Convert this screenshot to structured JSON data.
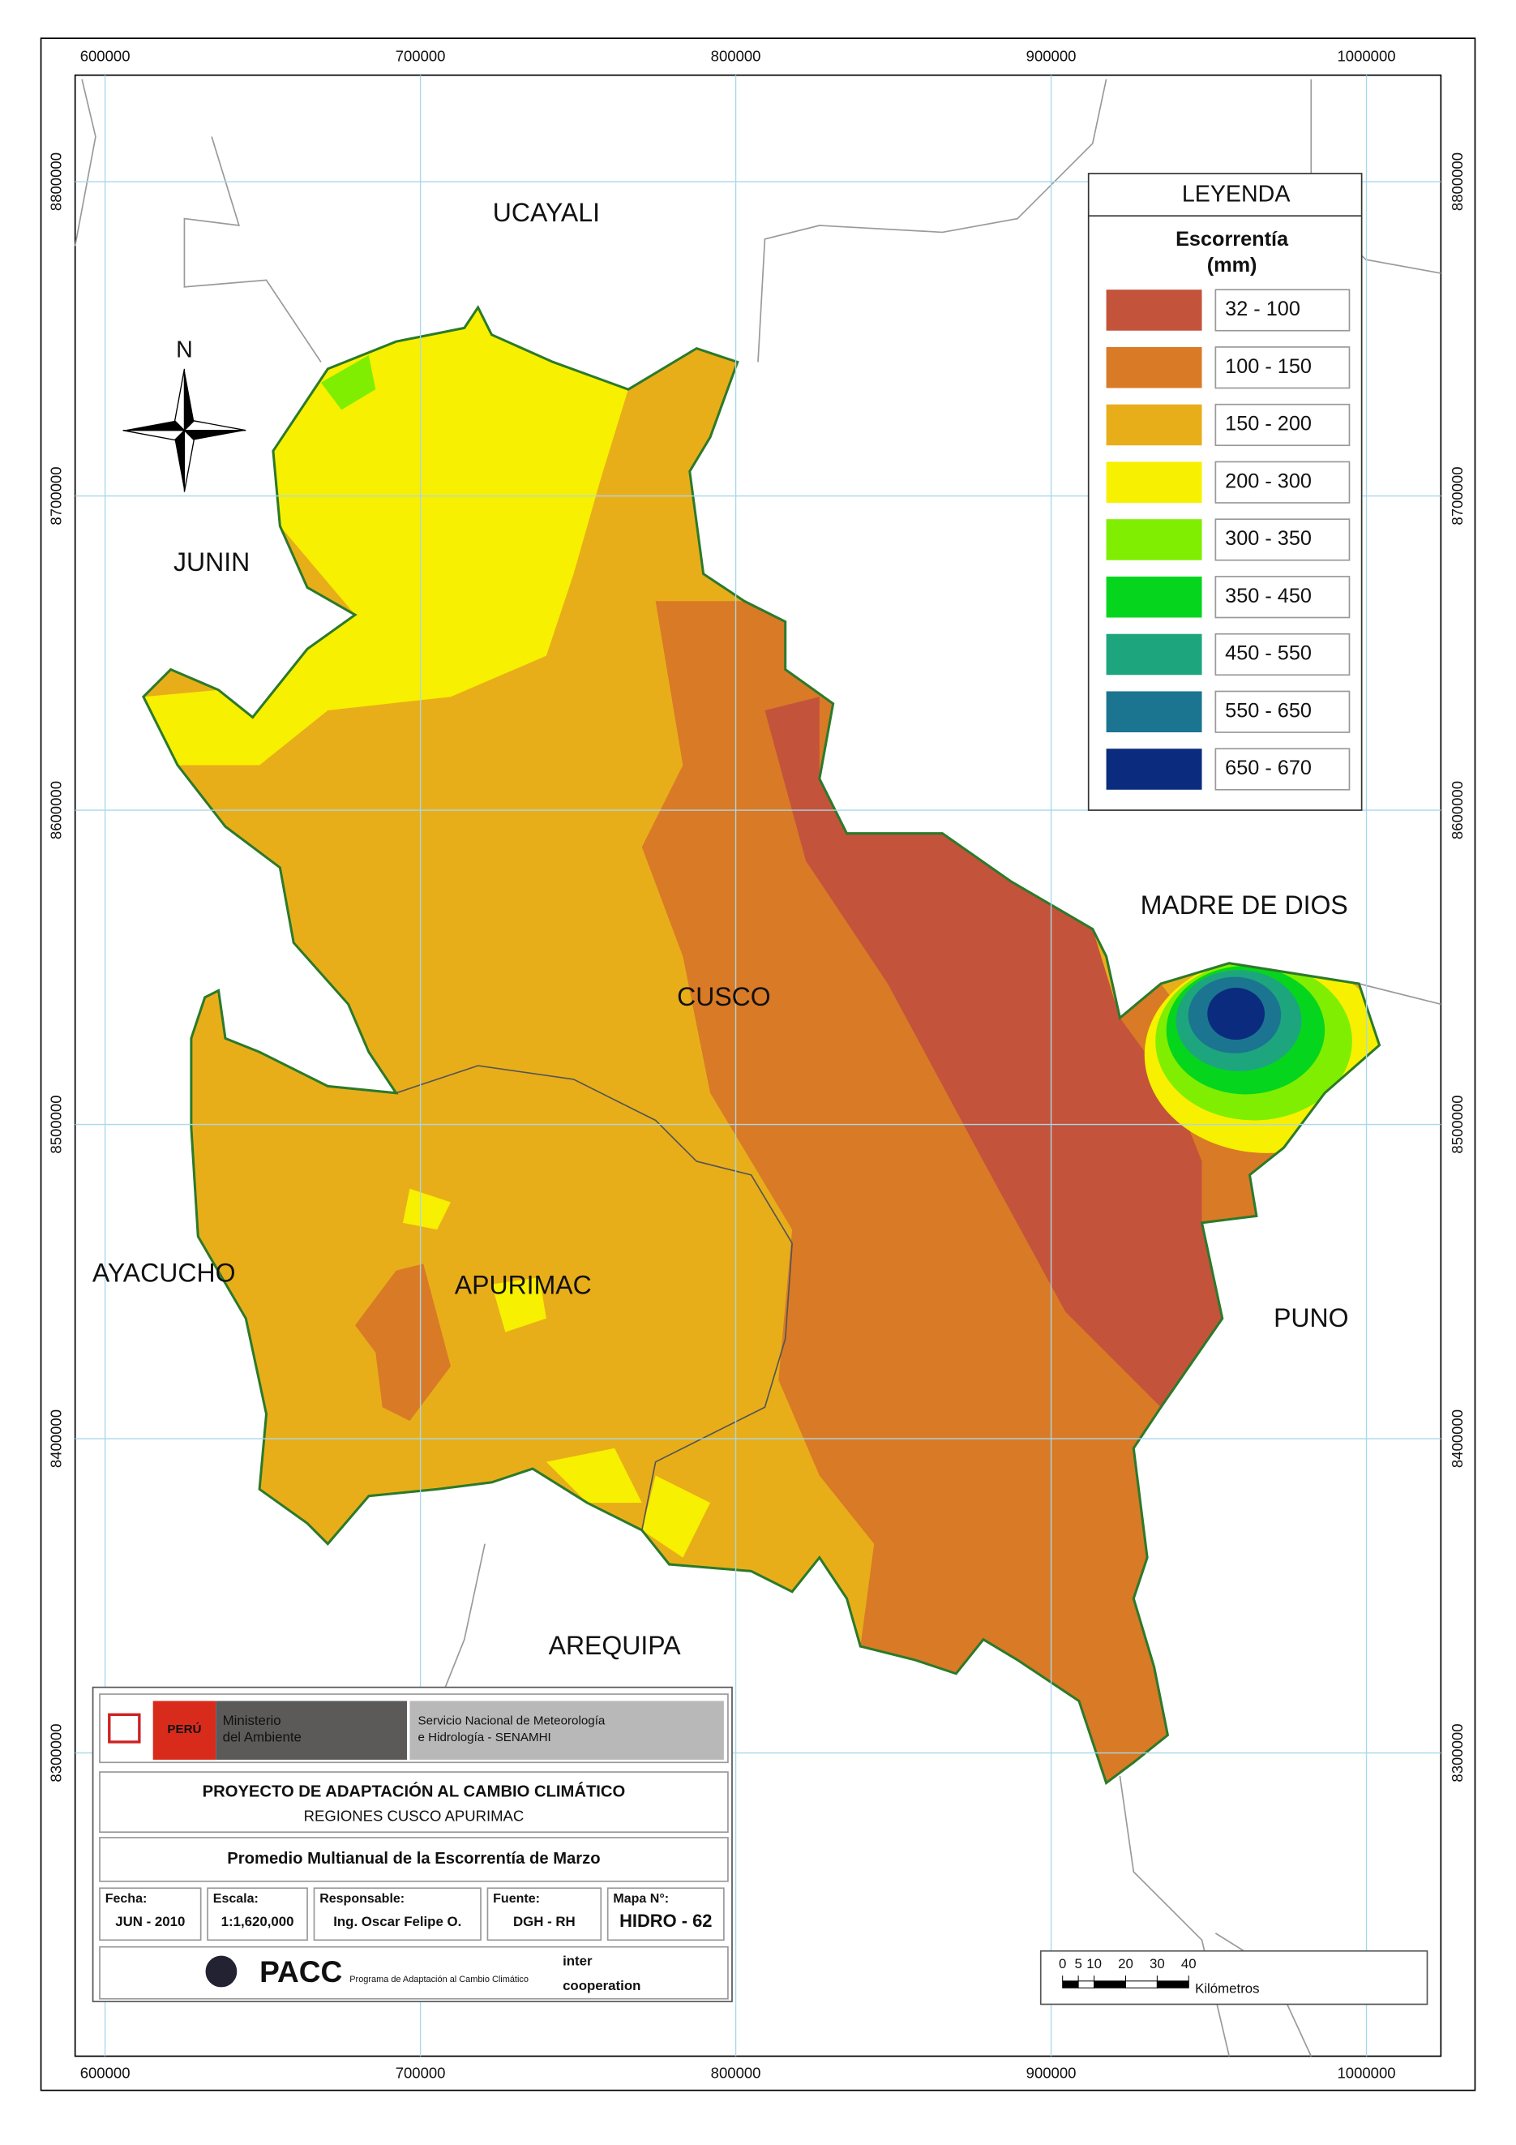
{
  "chart_data": {
    "type": "map",
    "xlim": [
      590500,
      1023600
    ],
    "ylim": [
      8203500,
      8833900
    ],
    "xticks": [
      600000,
      700000,
      800000,
      900000,
      1000000
    ],
    "yticks": [
      8300000,
      8400000,
      8500000,
      8600000,
      8700000,
      8800000
    ],
    "grid": true,
    "grid_color": "#a8d8ea",
    "north": "N",
    "regions": [
      "UCAYALI",
      "JUNIN",
      "AYACUCHO",
      "APURIMAC",
      "CUSCO",
      "MADRE DE DIOS",
      "PUNO",
      "AREQUIPA"
    ],
    "legend": {
      "title": "LEYENDA",
      "subtitle": [
        "Escorrentía",
        "(mm)"
      ],
      "classes": [
        {
          "label": "32 - 100",
          "color": "#c4533b"
        },
        {
          "label": "100 - 150",
          "color": "#d97a26"
        },
        {
          "label": "150 - 200",
          "color": "#e8ae1a"
        },
        {
          "label": "200 - 300",
          "color": "#f7f000"
        },
        {
          "label": "300 - 350",
          "color": "#80ee00"
        },
        {
          "label": "350 - 450",
          "color": "#05d61d"
        },
        {
          "label": "450 - 550",
          "color": "#1da67e"
        },
        {
          "label": "550 - 650",
          "color": "#1b7590"
        },
        {
          "label": "650 - 670",
          "color": "#0b2c7e"
        }
      ]
    },
    "scale_bar": {
      "ticks": [
        0,
        5,
        10,
        20,
        30,
        40
      ],
      "unit": "Kilómetros"
    },
    "footer": {
      "peru": "PERÚ",
      "ministry": [
        "Ministerio",
        "del Ambiente"
      ],
      "senamhi": [
        "Servicio Nacional de Meteorología",
        "e Hidrología - SENAMHI"
      ],
      "project_title": "PROYECTO DE ADAPTACIÓN AL CAMBIO CLIMÁTICO",
      "project_subtitle": "REGIONES CUSCO APURIMAC",
      "map_title": "Promedio Multianual de la Escorrentía de Marzo",
      "fields": [
        {
          "label": "Fecha:",
          "value": "JUN - 2010"
        },
        {
          "label": "Escala:",
          "value": "1:1,620,000"
        },
        {
          "label": "Responsable:",
          "value": "Ing. Oscar Felipe O."
        },
        {
          "label": "Fuente:",
          "value": "DGH - RH"
        },
        {
          "label": "Mapa N°:",
          "value": "HIDRO - 62"
        }
      ],
      "pacc": "PACC",
      "pacc_program": "Programa de Adaptación al Cambio Climático",
      "intercooperation": [
        "inter",
        "cooperation"
      ]
    }
  }
}
